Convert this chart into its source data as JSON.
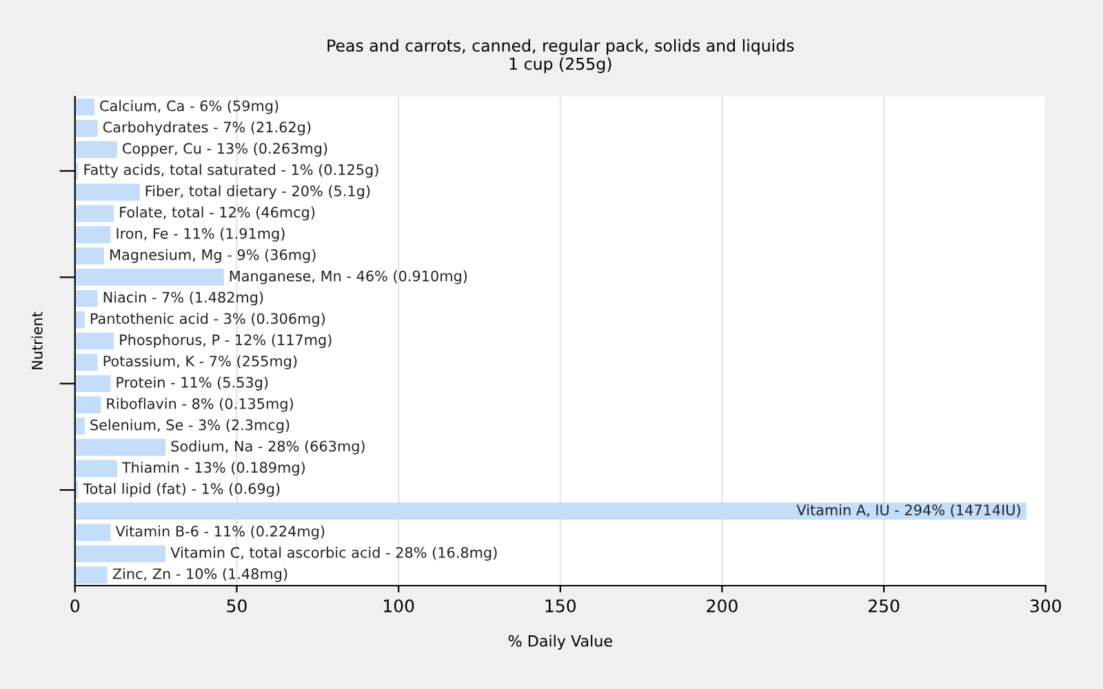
{
  "chart_data": {
    "type": "bar",
    "orientation": "horizontal",
    "title": "Peas and carrots, canned, regular pack, solids and liquids\n1 cup (255g)",
    "xlabel": "% Daily Value",
    "ylabel": "Nutrient",
    "categories": [
      "Calcium, Ca - 6% (59mg)",
      "Carbohydrates - 7% (21.62g)",
      "Copper, Cu - 13% (0.263mg)",
      "Fatty acids, total saturated - 1% (0.125g)",
      "Fiber, total dietary - 20% (5.1g)",
      "Folate, total - 12% (46mcg)",
      "Iron, Fe - 11% (1.91mg)",
      "Magnesium, Mg - 9% (36mg)",
      "Manganese, Mn - 46% (0.910mg)",
      "Niacin - 7% (1.482mg)",
      "Pantothenic acid - 3% (0.306mg)",
      "Phosphorus, P - 12% (117mg)",
      "Potassium, K - 7% (255mg)",
      "Protein - 11% (5.53g)",
      "Riboflavin - 8% (0.135mg)",
      "Selenium, Se - 3% (2.3mcg)",
      "Sodium, Na - 28% (663mg)",
      "Thiamin - 13% (0.189mg)",
      "Total lipid (fat) - 1% (0.69g)",
      "Vitamin A, IU - 294% (14714IU)",
      "Vitamin B-6 - 11% (0.224mg)",
      "Vitamin C, total ascorbic acid - 28% (16.8mg)",
      "Zinc, Zn - 10% (1.48mg)"
    ],
    "values": [
      6,
      7,
      13,
      1,
      20,
      12,
      11,
      9,
      46,
      7,
      3,
      12,
      7,
      11,
      8,
      3,
      28,
      13,
      1,
      294,
      11,
      28,
      10
    ],
    "color": "#c3ddfb",
    "xlim": [
      0,
      300
    ],
    "xticks": [
      0,
      50,
      100,
      150,
      200,
      250,
      300
    ],
    "grid": "x"
  }
}
